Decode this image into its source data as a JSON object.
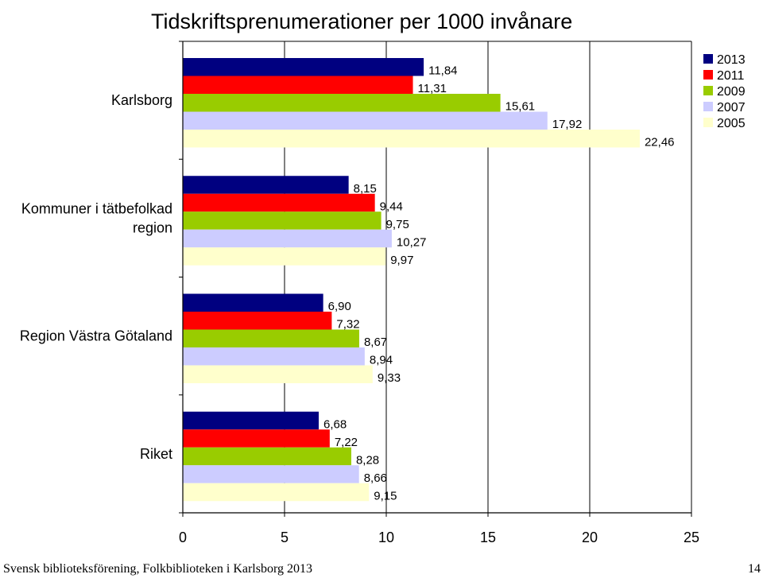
{
  "chart_data": {
    "type": "bar",
    "orientation": "horizontal",
    "title": "Tidskriftsprenumerationer per 1000 invånare",
    "categories": [
      "Karlsborg",
      "Kommuner i tätbefolkad region",
      "Region Västra Götaland",
      "Riket"
    ],
    "series": [
      {
        "name": "2013",
        "color": "#000080",
        "values": [
          11.84,
          8.15,
          6.9,
          6.68
        ],
        "labels": [
          "11,84",
          "8,15",
          "6,90",
          "6,68"
        ]
      },
      {
        "name": "2011",
        "color": "#ff0000",
        "values": [
          11.31,
          9.44,
          7.32,
          7.22
        ],
        "labels": [
          "11,31",
          "9,44",
          "7,32",
          "7,22"
        ]
      },
      {
        "name": "2009",
        "color": "#99cc00",
        "values": [
          15.61,
          9.75,
          8.67,
          8.28
        ],
        "labels": [
          "15,61",
          "9,75",
          "8,67",
          "8,28"
        ]
      },
      {
        "name": "2007",
        "color": "#ccccff",
        "values": [
          17.92,
          10.27,
          8.94,
          8.66
        ],
        "labels": [
          "17,92",
          "10,27",
          "8,94",
          "8,66"
        ]
      },
      {
        "name": "2005",
        "color": "#ffffcc",
        "values": [
          22.46,
          9.97,
          9.33,
          9.15
        ],
        "labels": [
          "22,46",
          "9,97",
          "9,33",
          "9,15"
        ]
      }
    ],
    "xlim": [
      0,
      25
    ],
    "xticks": [
      "0",
      "5",
      "10",
      "15",
      "20",
      "25"
    ],
    "grid": "vertical",
    "legend_position": "top-right"
  },
  "footer": {
    "source": "Svensk biblioteksförening, Folkbiblioteken i Karlsborg 2013",
    "page_number": "14"
  }
}
